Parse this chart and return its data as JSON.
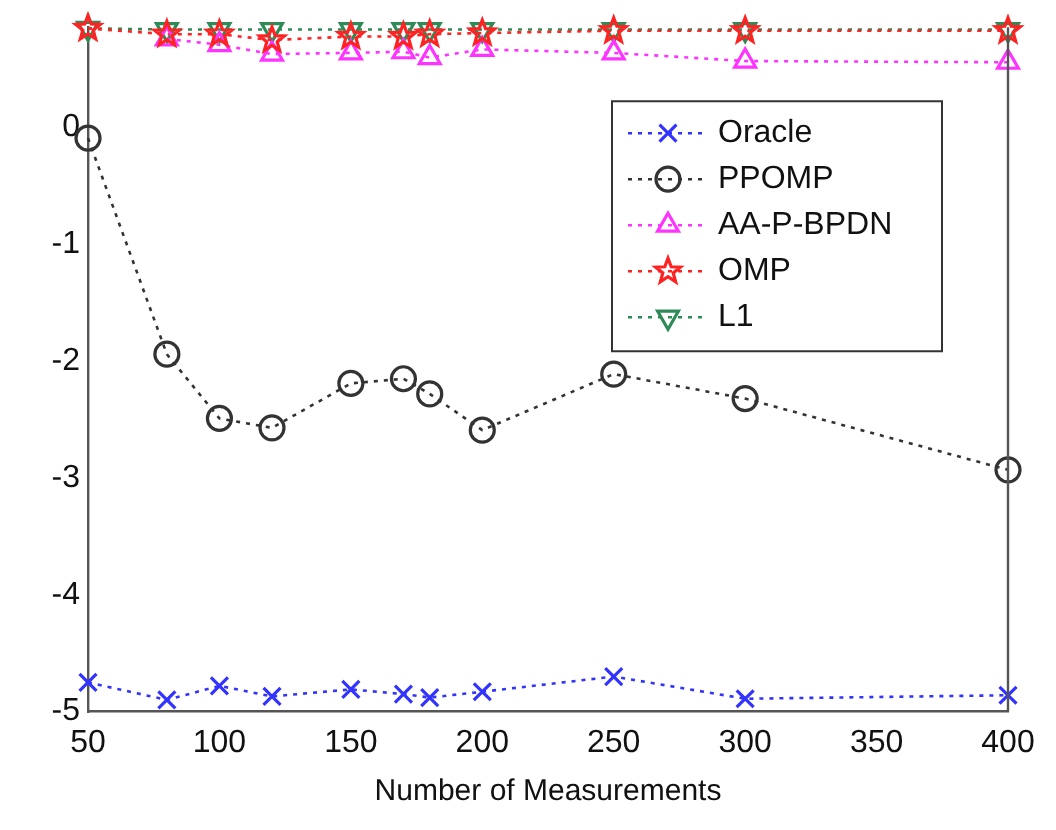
{
  "chart_data": {
    "type": "line",
    "xlabel": "Number of Measurements",
    "x": [
      50,
      80,
      100,
      120,
      150,
      170,
      180,
      200,
      250,
      300,
      400
    ],
    "xlim": [
      50,
      400
    ],
    "xticks": [
      50,
      100,
      150,
      200,
      250,
      300,
      350,
      400
    ],
    "ylim": [
      -5,
      0.86
    ],
    "yticks": [
      0,
      -1,
      -2,
      -3,
      -4,
      -5
    ],
    "grid": false,
    "legend": "top right",
    "line_style": "dotted",
    "series": [
      {
        "name": "Oracle",
        "color": "#3333ff",
        "marker": "cross",
        "values": [
          -4.75,
          -4.9,
          -4.78,
          -4.87,
          -4.81,
          -4.85,
          -4.88,
          -4.83,
          -4.7,
          -4.89,
          -4.86
        ]
      },
      {
        "name": "PPOMP",
        "color": "#333333",
        "marker": "circle",
        "values": [
          -0.09,
          -1.94,
          -2.49,
          -2.57,
          -2.19,
          -2.15,
          -2.28,
          -2.59,
          -2.11,
          -2.32,
          -2.93
        ]
      },
      {
        "name": "AA-P-BPDN",
        "color": "#ff33ff",
        "marker": "triangle",
        "values": [
          null,
          0.76,
          0.71,
          0.63,
          0.64,
          0.65,
          0.6,
          0.67,
          0.64,
          0.57,
          0.56
        ]
      },
      {
        "name": "OMP",
        "color": "#ff2222",
        "marker": "star",
        "values": [
          0.85,
          0.8,
          0.8,
          0.75,
          0.78,
          0.78,
          0.8,
          0.81,
          0.83,
          0.83,
          0.83
        ]
      },
      {
        "name": "L1",
        "color": "#2e8b57",
        "marker": "triangle-down",
        "values": [
          0.85,
          0.84,
          0.84,
          0.84,
          0.84,
          0.84,
          0.84,
          0.84,
          0.84,
          0.84,
          0.84
        ]
      }
    ]
  }
}
